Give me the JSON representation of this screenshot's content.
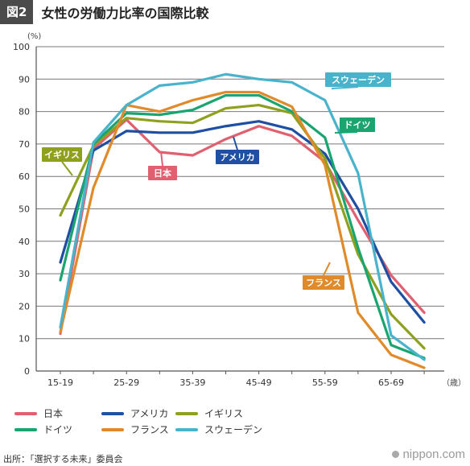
{
  "header": {
    "figure_label": "図2",
    "title": "女性の労働力比率の国際比較"
  },
  "chart_data": {
    "type": "line",
    "ylabel_unit": "(%)",
    "xlabel_unit": "（歳）",
    "ylim": [
      0,
      100
    ],
    "yticks": [
      0,
      10,
      20,
      30,
      40,
      50,
      60,
      70,
      80,
      90,
      100
    ],
    "x": [
      "15-19",
      "20-24",
      "25-29",
      "30-34",
      "35-39",
      "40-44",
      "45-49",
      "50-54",
      "55-59",
      "60-64",
      "65-69",
      "70+"
    ],
    "x_tick_labels": [
      "15-19",
      "",
      "25-29",
      "",
      "35-39",
      "",
      "45-49",
      "",
      "55-59",
      "",
      "65-69",
      ""
    ],
    "grid": true,
    "series": [
      {
        "name": "日本",
        "color": "#e06070",
        "label": "日本",
        "label_color": "#e06070",
        "values": [
          11.5,
          68.5,
          77.5,
          67.5,
          66.5,
          71.5,
          75.5,
          72.5,
          64.5,
          46.5,
          29.5,
          18
        ]
      },
      {
        "name": "アメリカ",
        "color": "#1f4fa3",
        "label": "アメリカ",
        "label_color": "#1f4fa3",
        "values": [
          33.5,
          68,
          74,
          73.5,
          73.5,
          75.5,
          77,
          74.5,
          67,
          50,
          27.5,
          15
        ]
      },
      {
        "name": "イギリス",
        "color": "#8fa01e",
        "label": "イギリス",
        "label_color": "#8fa01e",
        "values": [
          48,
          69.5,
          78,
          77,
          76.5,
          81,
          82,
          79.5,
          65.5,
          36,
          17.5,
          7
        ]
      },
      {
        "name": "ドイツ",
        "color": "#1aa570",
        "label": "ドイツ",
        "label_color": "#1aa570",
        "values": [
          28,
          70,
          79.5,
          79,
          80.5,
          85,
          85,
          80,
          72,
          38,
          8,
          4
        ]
      },
      {
        "name": "フランス",
        "color": "#e08a2a",
        "label": "フランス",
        "label_color": "#e08a2a",
        "values": [
          12,
          56.5,
          82,
          80,
          83.5,
          86,
          86,
          81.5,
          63.5,
          18,
          5,
          1
        ]
      },
      {
        "name": "スウェーデン",
        "color": "#4ab3cc",
        "label": "スウェーデン",
        "label_color": "#4ab3cc",
        "values": [
          13.5,
          70.5,
          82,
          88,
          89,
          91.5,
          90,
          89,
          83.5,
          61,
          11,
          3.5
        ]
      }
    ]
  },
  "legend": [
    {
      "name": "日本",
      "color": "#e06070"
    },
    {
      "name": "アメリカ",
      "color": "#1f4fa3"
    },
    {
      "name": "イギリス",
      "color": "#8fa01e"
    },
    {
      "name": "ドイツ",
      "color": "#1aa570"
    },
    {
      "name": "フランス",
      "color": "#e08a2a"
    },
    {
      "name": "スウェーデン",
      "color": "#4ab3cc"
    }
  ],
  "footer": {
    "source": "出所：「選択する未来」委員会",
    "brand": "nippon.com"
  }
}
